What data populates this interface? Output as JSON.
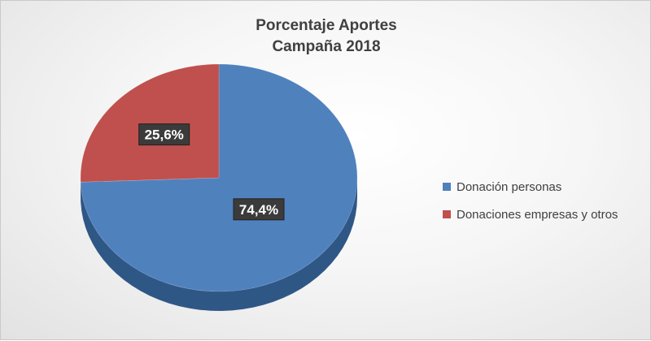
{
  "chart_data": {
    "type": "pie",
    "title": [
      "Porcentaje Aportes",
      "Campaña 2018"
    ],
    "series": [
      {
        "categories": [
          "Donación personas",
          "Donaciones empresas y otros"
        ],
        "values": [
          74.4,
          25.6
        ],
        "labels": [
          "74,4%",
          "25,6%"
        ],
        "colors": [
          "#4f81bd",
          "#c0504d"
        ],
        "side_colors": [
          "#2f5786",
          "#8c2d2b"
        ]
      }
    ],
    "legend_position": "right",
    "style": "3d-pie"
  }
}
